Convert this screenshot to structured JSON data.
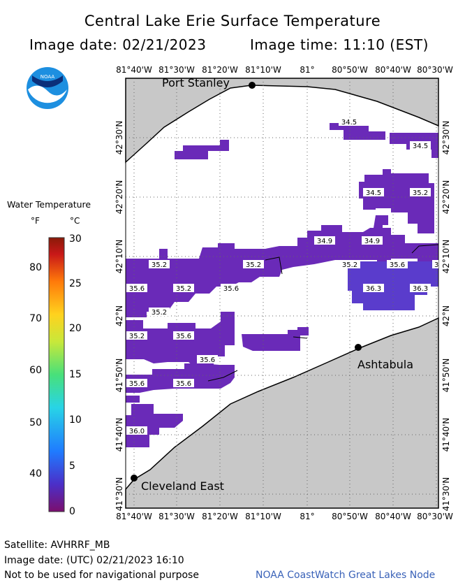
{
  "title": "Central Lake Erie Surface Temperature",
  "image_date_label": "Image date: 02/21/2023",
  "image_time_label": "Image time: 11:10 (EST)",
  "logo": {
    "text": "NOAA"
  },
  "map": {
    "lon_ticks": [
      "81°40'W",
      "81°30'W",
      "81°20'W",
      "81°10'W",
      "81°",
      "80°50'W",
      "80°40'W",
      "80°30'W"
    ],
    "lat_ticks": [
      "42°30'N",
      "42°20'N",
      "42°10'N",
      "42°N",
      "41°50'N",
      "41°40'N",
      "41°30'N"
    ],
    "places": [
      {
        "name": "Port Stanley"
      },
      {
        "name": "Ashtabula"
      },
      {
        "name": "Cleveland East"
      }
    ],
    "temperature_labels": [
      "34.5",
      "34.5",
      "34.5",
      "35.2",
      "34.9",
      "34.9",
      "35.2",
      "35.2",
      "35.2",
      "35.6",
      "3",
      "35.6",
      "35.2",
      "35.6",
      "36.3",
      "36.3",
      "35.2",
      "35.2",
      "35.6",
      "35.6",
      "35.6",
      "35.6",
      "36.0"
    ],
    "colors": {
      "land": "#c8c8c8",
      "water_nodata": "#ffffff",
      "water_cold": "#6a2ab8",
      "water_warmer": "#5a3ccc",
      "grid": "#666666"
    }
  },
  "legend": {
    "title": "Water Temperature",
    "unit_f": "°F",
    "unit_c": "°C",
    "f_labels": [
      "80",
      "70",
      "60",
      "50",
      "40"
    ],
    "c_labels": [
      "30",
      "25",
      "20",
      "15",
      "10",
      "5",
      "0"
    ],
    "colorbar": [
      "#7b0f6e",
      "#4b2fc8",
      "#1f7bff",
      "#28d4e6",
      "#48e07a",
      "#c8e83a",
      "#ffd21e",
      "#ff7a0a",
      "#c81818",
      "#8a1a08"
    ]
  },
  "footer": {
    "satellite": "Satellite: AVHRRF_MB",
    "utc_date": "Image date: (UTC) 02/21/2023  16:10",
    "disclaimer": "Not to be used for navigational purpose",
    "credit": "NOAA CoastWatch Great Lakes Node"
  }
}
